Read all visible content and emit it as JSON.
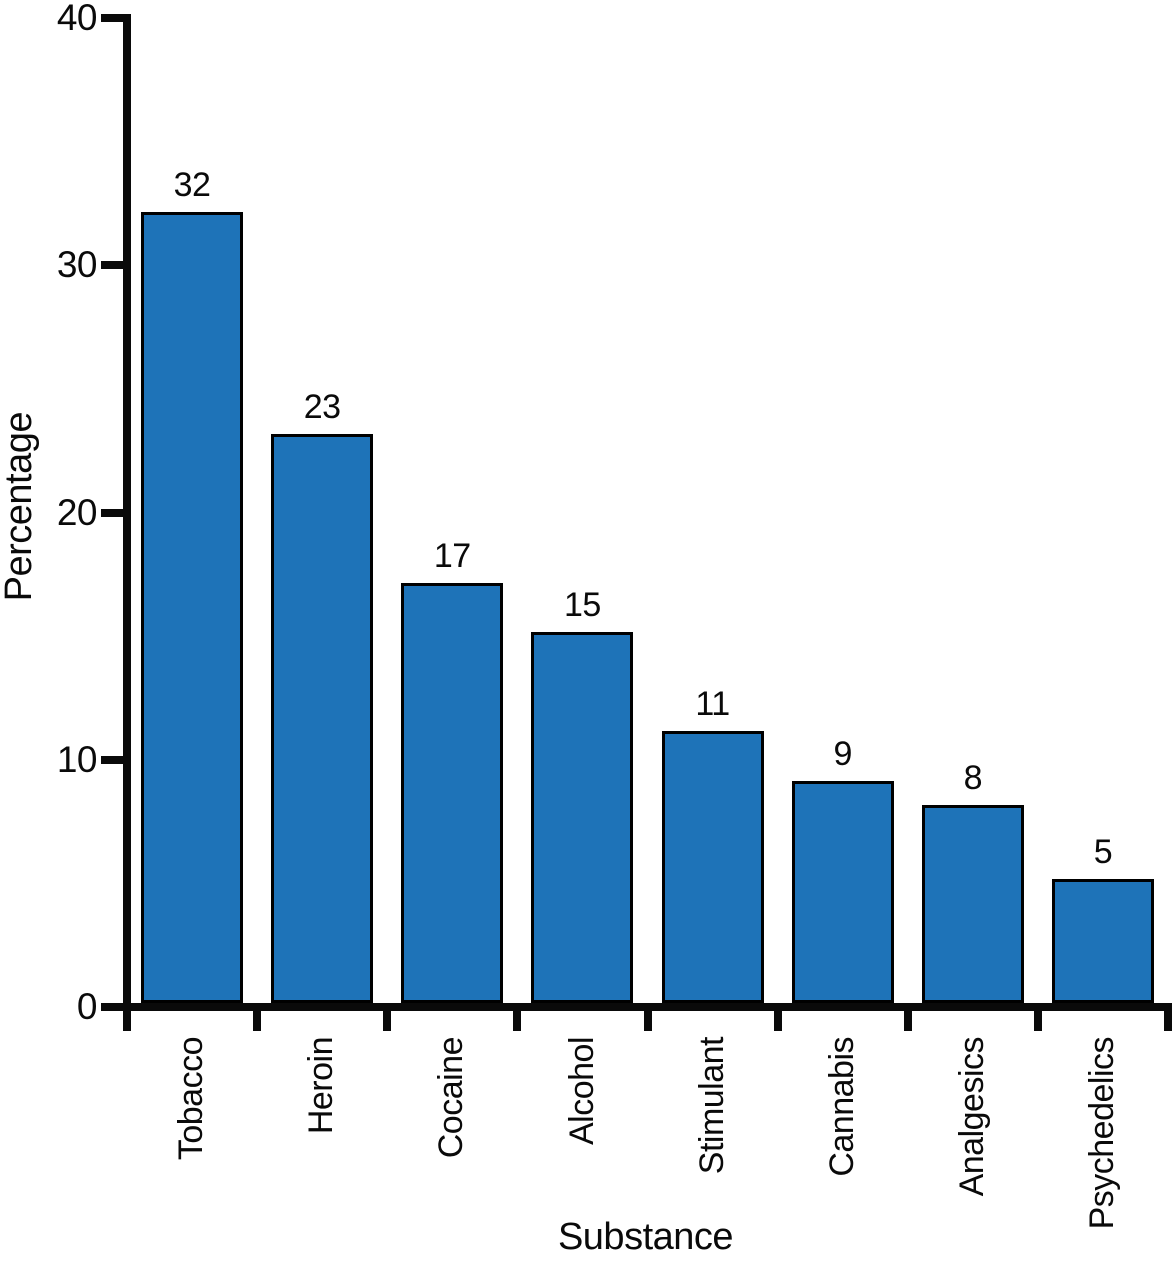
{
  "chart_data": {
    "type": "bar",
    "title": "",
    "xlabel": "Substance",
    "ylabel": "Percentage",
    "categories": [
      "Tobacco",
      "Heroin",
      "Cocaine",
      "Alcohol",
      "Stimulant",
      "Cannabis",
      "Analgesics",
      "Psychedelics"
    ],
    "values": [
      32,
      23,
      17,
      15,
      11,
      9,
      8,
      5
    ],
    "value_labels": [
      "32",
      "23",
      "17",
      "15",
      "11",
      "9",
      "8",
      "5"
    ],
    "ylim": [
      0,
      40
    ],
    "yticks": [
      0,
      10,
      20,
      30,
      40
    ],
    "grid": false,
    "legend": null,
    "bar_color": "#1E73B8",
    "bar_border_color": "#000000",
    "axis_color": "#0A0A0A",
    "text_color": "#0A0A0A",
    "background_color": "#FFFFFF"
  }
}
